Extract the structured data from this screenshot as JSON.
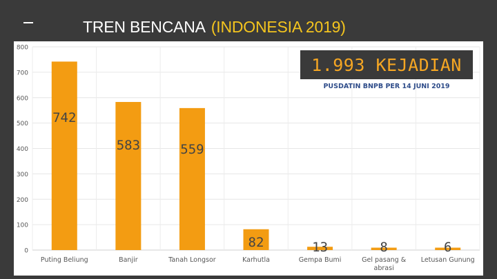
{
  "header": {
    "title_main": "TREN BENCANA",
    "title_highlight": "(INDONESIA 2019)"
  },
  "banner": {
    "text": "1.993 KEJADIAN",
    "source": "PUSDATIN BNPB PER 14 JUNI 2019"
  },
  "colors": {
    "bar": "#f39c12",
    "label": "#555555",
    "highlight": "#f5c51e",
    "banner_text": "#f5a623"
  },
  "chart_data": {
    "type": "bar",
    "categories": [
      "Puting Beliung",
      "Banjir",
      "Tanah Longsor",
      "Karhutla",
      "Gempa Bumi",
      "Gel pasang & abrasi",
      "Letusan Gunung"
    ],
    "values": [
      742,
      583,
      559,
      82,
      13,
      8,
      6
    ],
    "data_labels": [
      "742",
      "583",
      "559",
      "82",
      "13",
      "8",
      "6"
    ],
    "y_ticks": [
      "0",
      "100",
      "200",
      "300",
      "400",
      "500",
      "600",
      "700",
      "800"
    ],
    "ylim": [
      0,
      800
    ],
    "title": "",
    "xlabel": "",
    "ylabel": "",
    "grid": true
  }
}
